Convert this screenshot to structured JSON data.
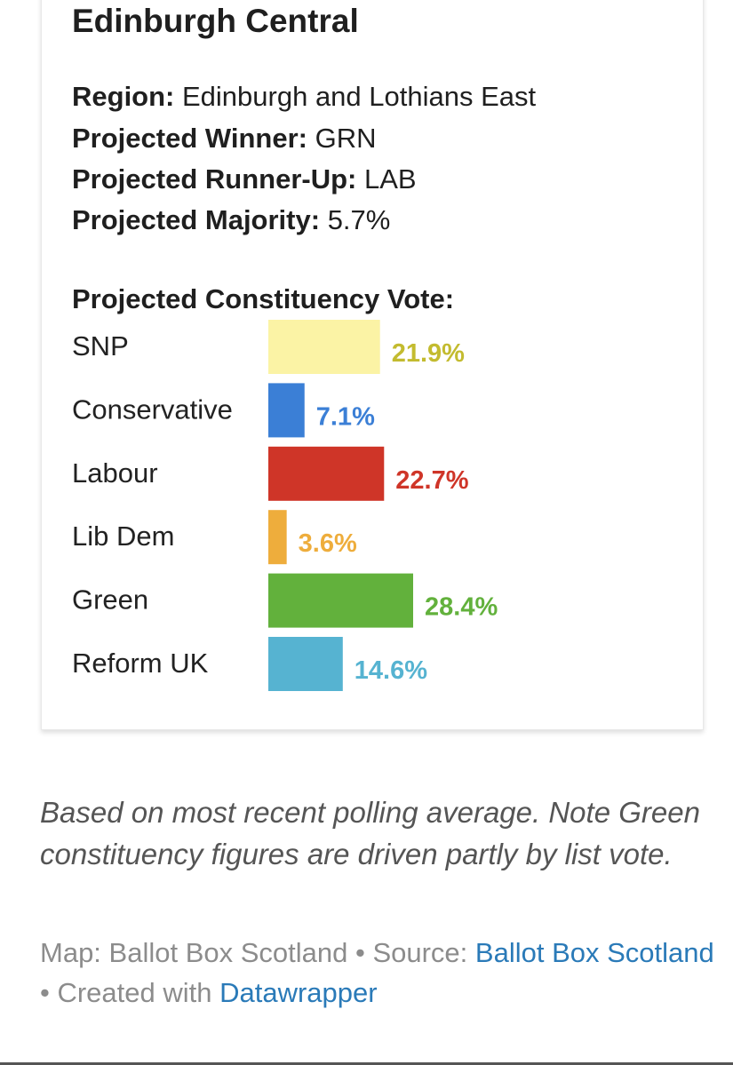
{
  "card": {
    "title": "Edinburgh Central",
    "region_label": "Region:",
    "region_value": "Edinburgh and Lothians East",
    "winner_label": "Projected Winner:",
    "winner_value": "GRN",
    "runnerup_label": "Projected Runner-Up:",
    "runnerup_value": "LAB",
    "majority_label": "Projected Majority:",
    "majority_value": "5.7%",
    "close_icon": "close-icon"
  },
  "chart_data": {
    "type": "bar",
    "orientation": "horizontal",
    "title": "Projected Constituency Vote:",
    "categories": [
      "SNP",
      "Conservative",
      "Labour",
      "Lib Dem",
      "Green",
      "Reform UK"
    ],
    "values": [
      21.9,
      7.1,
      22.7,
      3.6,
      28.4,
      14.6
    ],
    "value_labels": [
      "21.9%",
      "7.1%",
      "22.7%",
      "3.6%",
      "28.4%",
      "14.6%"
    ],
    "bar_colors": [
      "#fbf3a5",
      "#3b7fd6",
      "#cf3528",
      "#eead3c",
      "#62b13c",
      "#56b3d1"
    ],
    "label_colors": [
      "#c3bb2f",
      "#3b7fd6",
      "#cf3528",
      "#eead3c",
      "#62b13c",
      "#56b3d1"
    ],
    "grid": false
  },
  "footer": {
    "caption": "Based on most recent polling average. Note Green constituency figures are driven partly by list vote.",
    "map_credit": "Map: Ballot Box Scotland",
    "separator": " • ",
    "source_label": "Source: ",
    "source_link": "Ballot Box Scotland",
    "created_label": "Created with ",
    "created_link": "Datawrapper"
  }
}
